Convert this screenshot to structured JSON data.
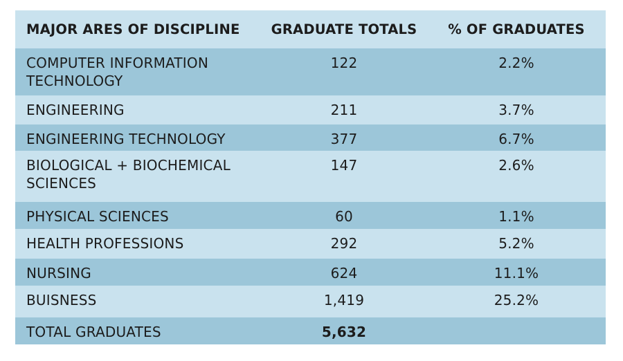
{
  "chart_data": {
    "type": "table",
    "columns": [
      "MAJOR ARES OF DISCIPLINE",
      "GRADUATE TOTALS",
      "% OF GRADUATES"
    ],
    "rows": [
      {
        "discipline": "COMPUTER  INFORMATION TECHNOLOGY",
        "total": "122",
        "percent": "2.2%"
      },
      {
        "discipline": "ENGINEERING",
        "total": "211",
        "percent": "3.7%"
      },
      {
        "discipline": "ENGINEERING TECHNOLOGY",
        "total": "377",
        "percent": "6.7%"
      },
      {
        "discipline": "BIOLOGICAL + BIOCHEMICAL SCIENCES",
        "total": "147",
        "percent": "2.6%"
      },
      {
        "discipline": "PHYSICAL SCIENCES",
        "total": "60",
        "percent": "1.1%"
      },
      {
        "discipline": "HEALTH PROFESSIONS",
        "total": "292",
        "percent": "5.2%"
      },
      {
        "discipline": "NURSING",
        "total": "624",
        "percent": "11.1%"
      },
      {
        "discipline": "BUISNESS",
        "total": "1,419",
        "percent": "25.2%"
      }
    ],
    "total_row": {
      "label": "TOTAL GRADUATES",
      "total": "5,632",
      "percent": ""
    }
  },
  "colors": {
    "header_bg": "#c9e2ee",
    "dark_row": "#9cc6d9",
    "light_row": "#c9e2ee",
    "text": "#1c1c1c"
  }
}
